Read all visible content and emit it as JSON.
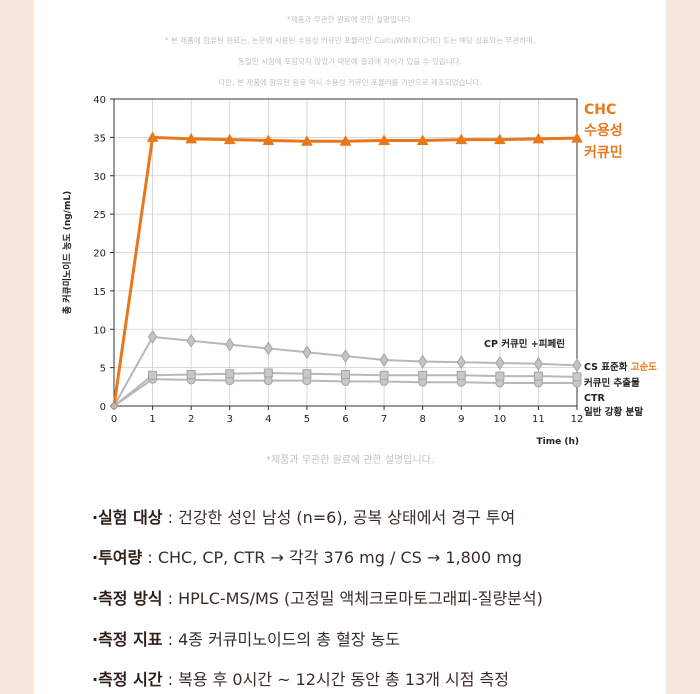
{
  "notes": {
    "top": [
      "*제품과 무관한 원료에 관한 설명입니다.",
      "* 본 제품에 함유된 원료는, 논문에 사용된 수용성 커큐민 포뮬러인 CurcuWIN®(CHC) 또는 해당 상표와는 무관하며,",
      "동일한 시험에 포함되지 않았기 때문에 결과에 차이가 있을 수 있습니다.",
      "다만, 본 제품에 함유된 원료 역시 수용성 커큐민 포뮬러를 기반으로 제조되었습니다."
    ],
    "bottom": "*제품과 무관한 원료에 관한 설명입니다."
  },
  "chart_data": {
    "type": "line",
    "ylabel": "총 커큐미노이드 농도 (ng/mL)",
    "xlabel": "Time (h)",
    "x": [
      0,
      1,
      2,
      3,
      4,
      5,
      6,
      7,
      8,
      9,
      10,
      11,
      12
    ],
    "xlim": [
      0,
      12
    ],
    "ylim": [
      0,
      40
    ],
    "yticks": [
      0,
      5,
      10,
      15,
      20,
      25,
      30,
      35,
      40
    ],
    "grid": true,
    "series": [
      {
        "name": "CHC 수용성 커큐민",
        "label_lines": [
          "CHC",
          "수용성",
          "커큐민"
        ],
        "color": "#e8781c",
        "marker": "triangle",
        "values": [
          0,
          35.0,
          34.8,
          34.7,
          34.6,
          34.5,
          34.5,
          34.6,
          34.6,
          34.7,
          34.7,
          34.8,
          34.9
        ]
      },
      {
        "name": "CP 커큐민 +피페린",
        "label_lines": [
          "CP 커큐민 +피페린"
        ],
        "color": "#b8b8b8",
        "marker": "diamond",
        "values": [
          0,
          9.0,
          8.5,
          8.0,
          7.5,
          7.0,
          6.5,
          6.0,
          5.8,
          5.7,
          5.6,
          5.5,
          5.3
        ]
      },
      {
        "name": "CS 표준화 고순도 커큐민 추출물",
        "label_lines": [
          "CS 표준화 ",
          "고순도",
          "커큐민 추출물"
        ],
        "color": "#b8b8b8",
        "marker": "square",
        "values": [
          0,
          4.0,
          4.1,
          4.2,
          4.3,
          4.2,
          4.1,
          4.0,
          4.0,
          4.0,
          3.9,
          3.9,
          3.8
        ]
      },
      {
        "name": "CTR 일반 강황 분말",
        "label_lines": [
          "CTR",
          "일반 강황 분말"
        ],
        "color": "#b8b8b8",
        "marker": "circle",
        "values": [
          0,
          3.5,
          3.4,
          3.3,
          3.3,
          3.3,
          3.2,
          3.2,
          3.1,
          3.1,
          3.0,
          3.0,
          3.0
        ]
      }
    ]
  },
  "info": [
    {
      "label": "·실험 대상",
      "text": " : 건강한 성인 남성 (n=6), 공복 상태에서 경구 투여"
    },
    {
      "label": "·투여량",
      "text": " : CHC, CP, CTR → 각각 376 mg / CS → 1,800 mg"
    },
    {
      "label": "·측정 방식",
      "text": " : HPLC-MS/MS (고정밀 액체크로마토그래피-질량분석)"
    },
    {
      "label": "·측정 지표",
      "text": " : 4종 커큐미노이드의 총 혈장 농도"
    },
    {
      "label": "·측정 시간",
      "text": " : 복용 후 0시간 ~ 12시간 동안 총 13개 시점 측정"
    }
  ],
  "colors": {
    "accent": "#e8781c",
    "series_gray": "#b8b8b8",
    "grid": "#cfcfcf",
    "text": "#3a2d28"
  }
}
